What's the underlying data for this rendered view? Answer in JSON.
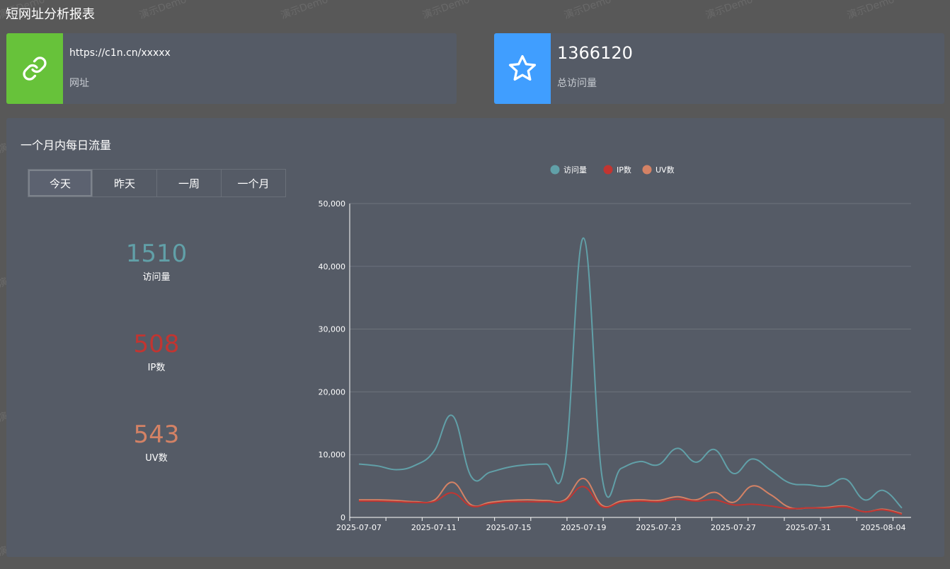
{
  "header": {
    "title": "短网址分析报表"
  },
  "cards": {
    "url": {
      "value": "https://c1n.cn/xxxxx",
      "label": "网址",
      "icon": "link-icon",
      "color": "#67c23a"
    },
    "visits": {
      "value": "1366120",
      "label": "总访问量",
      "icon": "star-icon",
      "color": "#409eff"
    }
  },
  "panel": {
    "title": "一个月内每日流量",
    "tabs": [
      "今天",
      "昨天",
      "一周",
      "一个月"
    ],
    "active_tab": "今天",
    "stats": {
      "pv": {
        "value": "1510",
        "label": "访问量",
        "color": "#61a0a8"
      },
      "ip": {
        "value": "508",
        "label": "IP数",
        "color": "#c23531"
      },
      "uv": {
        "value": "543",
        "label": "UV数",
        "color": "#d48265"
      }
    }
  },
  "watermark": "演示Demo",
  "chart_data": {
    "type": "line",
    "legend": [
      "访问量",
      "IP数",
      "UV数"
    ],
    "y_ticks": [
      "0",
      "10,000",
      "20,000",
      "30,000",
      "40,000",
      "50,000"
    ],
    "ylim": [
      0,
      50000
    ],
    "x_labels": [
      "2025-07-07",
      "2025-07-11",
      "2025-07-15",
      "2025-07-19",
      "2025-07-23",
      "2025-07-27",
      "2025-07-31",
      "2025-08-04"
    ],
    "x": [
      "2025-07-07",
      "2025-07-08",
      "2025-07-09",
      "2025-07-10",
      "2025-07-11",
      "2025-07-12",
      "2025-07-13",
      "2025-07-14",
      "2025-07-15",
      "2025-07-16",
      "2025-07-17",
      "2025-07-18",
      "2025-07-19",
      "2025-07-20",
      "2025-07-21",
      "2025-07-22",
      "2025-07-23",
      "2025-07-24",
      "2025-07-25",
      "2025-07-26",
      "2025-07-27",
      "2025-07-28",
      "2025-07-29",
      "2025-07-30",
      "2025-07-31",
      "2025-08-01",
      "2025-08-02",
      "2025-08-03",
      "2025-08-04",
      "2025-08-05"
    ],
    "series": [
      {
        "name": "访问量",
        "color": "#61a0a8",
        "values": [
          8500,
          8200,
          7600,
          8300,
          10500,
          16200,
          6500,
          7200,
          8000,
          8400,
          8500,
          8600,
          44500,
          6200,
          7800,
          8900,
          8400,
          11000,
          8800,
          10800,
          7000,
          9300,
          7500,
          5500,
          5200,
          5000,
          6100,
          2800,
          4300,
          1500
        ]
      },
      {
        "name": "IP数",
        "color": "#c23531",
        "values": [
          2600,
          2600,
          2500,
          2400,
          2500,
          3900,
          1800,
          2200,
          2500,
          2500,
          2500,
          2600,
          4900,
          1700,
          2400,
          2600,
          2500,
          2900,
          2600,
          2800,
          2000,
          2100,
          1800,
          1400,
          1500,
          1500,
          1700,
          900,
          1200,
          500
        ]
      },
      {
        "name": "UV数",
        "color": "#d48265",
        "values": [
          2800,
          2800,
          2700,
          2500,
          2700,
          5600,
          2000,
          2400,
          2700,
          2800,
          2700,
          2800,
          6200,
          1900,
          2600,
          2800,
          2700,
          3300,
          2800,
          4000,
          2400,
          5000,
          3600,
          1600,
          1500,
          1600,
          1800,
          900,
          1300,
          600
        ]
      }
    ]
  }
}
